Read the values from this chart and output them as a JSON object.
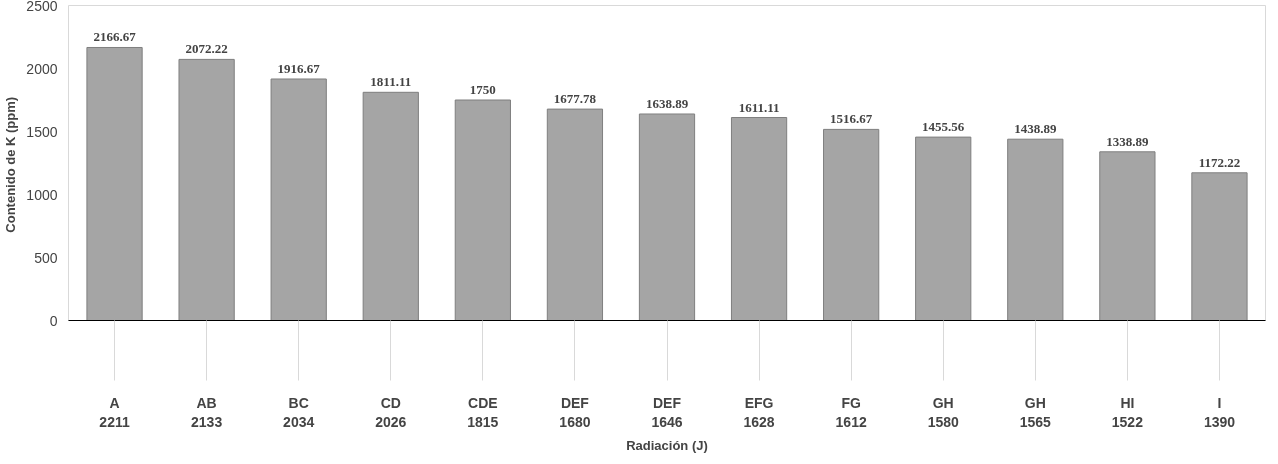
{
  "chart_data": {
    "type": "bar",
    "xlabel": "Radiación (J)",
    "ylabel": "Contenido de  K (ppm)",
    "categories": [
      "A\n2211",
      "AB\n2133",
      "BC\n2034",
      "CD\n2026",
      "CDE\n1815",
      "DEF\n1680",
      "DEF\n1646",
      "EFG\n1628",
      "FG\n1612",
      "GH\n1580",
      "GH\n1565",
      "HI\n1522",
      "I\n1390"
    ],
    "values": [
      2166.67,
      2072.22,
      1916.67,
      1811.11,
      1750,
      1677.78,
      1638.89,
      1611.11,
      1516.67,
      1455.56,
      1438.89,
      1338.89,
      1172.22
    ],
    "color": "#a5a5a5",
    "ylim": [
      0,
      2500
    ],
    "yticks": [
      0,
      500,
      1000,
      1500,
      2000,
      2500
    ],
    "grid": false,
    "data_labels": true
  }
}
